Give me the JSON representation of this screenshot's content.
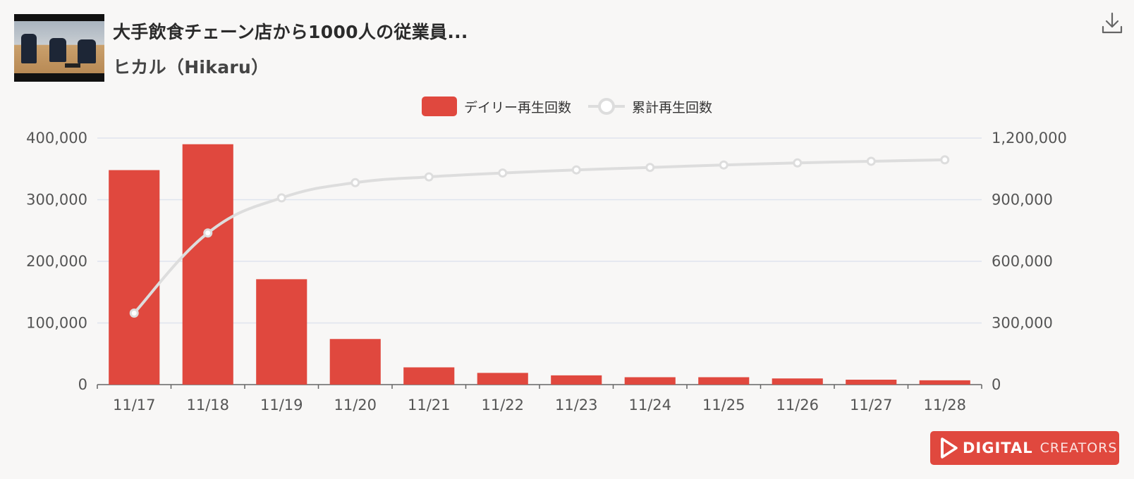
{
  "header": {
    "title": "大手飲食チェーン店から1000人の従業員...",
    "channel": "ヒカル（Hikaru）"
  },
  "icons": {
    "download": "download-icon",
    "thumbnail": "video-thumbnail"
  },
  "legend": {
    "daily_label": "デイリー再生回数",
    "cumulative_label": "累計再生回数"
  },
  "colors": {
    "bar": "#e0483e",
    "line": "#dddddd",
    "grid": "#dfe4ee",
    "axis": "#666666"
  },
  "chart_data": {
    "type": "bar",
    "categories": [
      "11/17",
      "11/18",
      "11/19",
      "11/20",
      "11/21",
      "11/22",
      "11/23",
      "11/24",
      "11/25",
      "11/26",
      "11/27",
      "11/28"
    ],
    "series": [
      {
        "name": "デイリー再生回数",
        "type": "bar",
        "axis": "left",
        "values": [
          348000,
          390000,
          171000,
          74000,
          28000,
          19000,
          15000,
          12000,
          12000,
          10000,
          8000,
          7000
        ]
      },
      {
        "name": "累計再生回数",
        "type": "line",
        "axis": "right",
        "values": [
          348000,
          738000,
          909000,
          983000,
          1011000,
          1030000,
          1045000,
          1057000,
          1069000,
          1079000,
          1087000,
          1094000
        ]
      }
    ],
    "y_left": {
      "min": 0,
      "max": 400000,
      "ticks": [
        "0",
        "100,000",
        "200,000",
        "300,000",
        "400,000"
      ]
    },
    "y_right": {
      "min": 0,
      "max": 1200000,
      "ticks": [
        "0",
        "300,000",
        "600,000",
        "900,000",
        "1,200,000"
      ]
    },
    "grid": true,
    "legend_position": "top-center"
  },
  "brand": {
    "part1": "DIGITAL",
    "part2": "CREATORS"
  }
}
